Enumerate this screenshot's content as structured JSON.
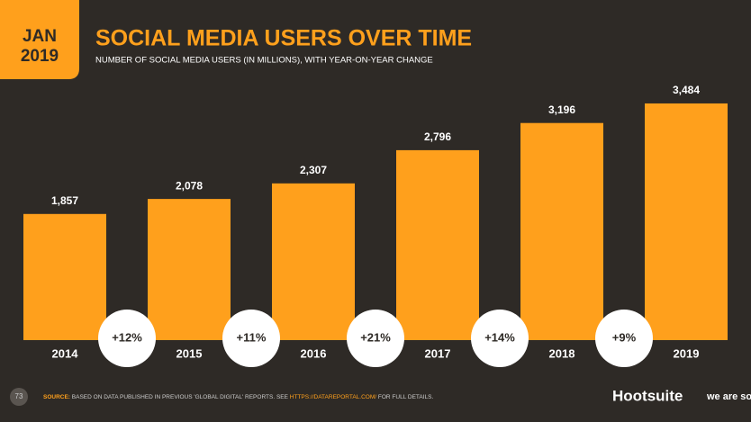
{
  "header": {
    "badge_month": "JAN",
    "badge_year": "2019"
  },
  "chart_data": {
    "type": "bar",
    "title": "SOCIAL MEDIA USERS OVER TIME",
    "subtitle": "NUMBER OF SOCIAL MEDIA USERS (IN MILLIONS), WITH YEAR-ON-YEAR CHANGE",
    "categories": [
      "2014",
      "2015",
      "2016",
      "2017",
      "2018",
      "2019"
    ],
    "values": [
      1857,
      2078,
      2307,
      2796,
      3196,
      3484
    ],
    "value_labels": [
      "1,857",
      "2,078",
      "2,307",
      "2,796",
      "3,196",
      "3,484"
    ],
    "changes": [
      "+12%",
      "+11%",
      "+21%",
      "+14%",
      "+9%"
    ],
    "color": "#ffa01c"
  },
  "footer": {
    "page": "73",
    "source_label": "SOURCE:",
    "source_text": "BASED ON DATA PUBLISHED IN PREVIOUS 'GLOBAL DIGITAL' REPORTS. SEE",
    "source_link": "HTTPS://DATAREPORTAL.COM/",
    "source_end": "FOR FULL DETAILS.",
    "brand1": "Hootsuite",
    "brand2": "we are social"
  }
}
